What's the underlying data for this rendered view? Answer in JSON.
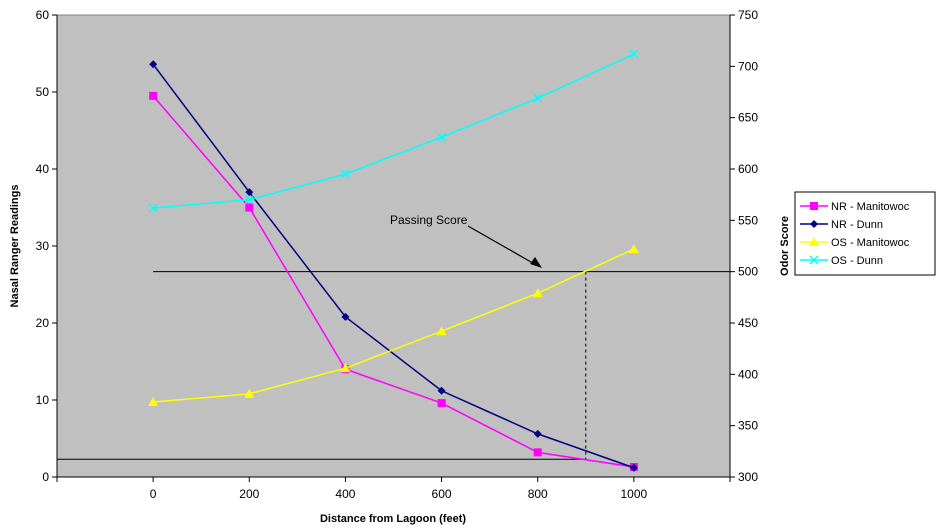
{
  "chart_data": {
    "type": "line",
    "title": "",
    "xlabel": "Distance from Lagoon (feet)",
    "ylabel": "Nasal Ranger Readings",
    "y2label": "Odor Score",
    "x": [
      0,
      200,
      400,
      600,
      800,
      1000
    ],
    "x_ticks": [
      "0",
      "200",
      "400",
      "600",
      "800",
      "1000"
    ],
    "xlim": [
      -200,
      1200
    ],
    "ylim": [
      0,
      60
    ],
    "y_ticks": [
      "0",
      "10",
      "20",
      "30",
      "40",
      "50",
      "60"
    ],
    "y2lim": [
      300,
      750
    ],
    "y2_ticks": [
      "300",
      "350",
      "400",
      "450",
      "500",
      "550",
      "600",
      "650",
      "700",
      "750"
    ],
    "grid": false,
    "plot_background": "#c0c0c0",
    "legend_position": "right",
    "series": [
      {
        "name": "NR - Manitowoc",
        "axis": "left",
        "values": [
          49.5,
          35,
          14,
          9.6,
          3.2,
          1.3
        ],
        "color": "#ff00ff",
        "marker": "square"
      },
      {
        "name": "NR - Dunn",
        "axis": "left",
        "values": [
          53.6,
          37,
          20.8,
          11.2,
          5.6,
          1.2
        ],
        "color": "#000080",
        "marker": "diamond"
      },
      {
        "name": "OS - Manitowoc",
        "axis": "right",
        "values": [
          373,
          381,
          406,
          442,
          479,
          522
        ],
        "color": "#ffff00",
        "marker": "triangle"
      },
      {
        "name": "OS - Dunn",
        "axis": "right",
        "values": [
          562,
          570,
          595,
          631,
          669,
          712
        ],
        "color": "#00ffff",
        "marker": "x"
      }
    ],
    "reference_lines": [
      {
        "axis": "right",
        "value": 500,
        "label": "Passing Score"
      },
      {
        "axis": "left",
        "value": 2.3
      }
    ],
    "crossing_x": 900
  }
}
